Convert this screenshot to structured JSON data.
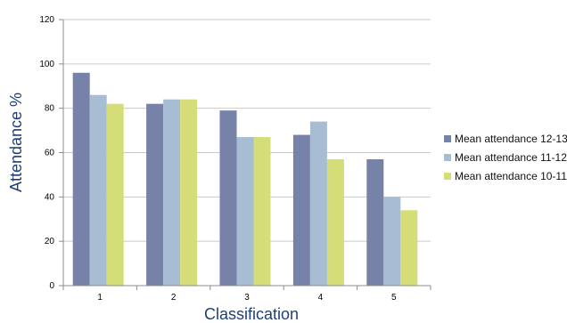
{
  "chart_data": {
    "type": "bar",
    "title": "",
    "xlabel": "Classification",
    "ylabel": "Attendance %",
    "categories": [
      "1",
      "2",
      "3",
      "4",
      "5"
    ],
    "ylim": [
      0,
      120
    ],
    "yticks": [
      0,
      20,
      40,
      60,
      80,
      100,
      120
    ],
    "grid": true,
    "legend_position": "right",
    "series": [
      {
        "name": "Mean attendance 12-13",
        "color": "#7682a8",
        "values": [
          96,
          82,
          79,
          68,
          57
        ]
      },
      {
        "name": "Mean attendance 11-12",
        "color": "#a7bdd4",
        "values": [
          86,
          84,
          67,
          74,
          40
        ]
      },
      {
        "name": "Mean attendance 10-11",
        "color": "#d4dd78",
        "values": [
          82,
          84,
          67,
          57,
          34
        ]
      }
    ]
  }
}
